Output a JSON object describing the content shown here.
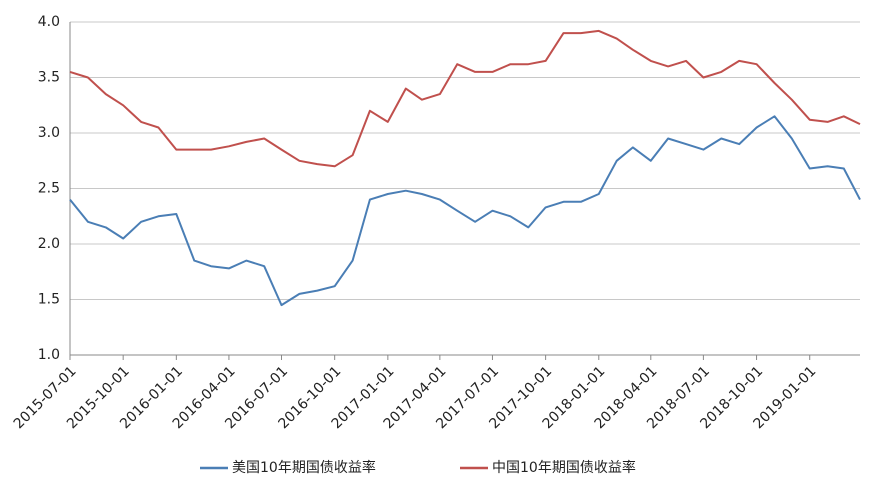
{
  "chart_data": {
    "type": "line",
    "x": [
      "2015-07-01",
      "2015-08-01",
      "2015-09-01",
      "2015-10-01",
      "2015-11-01",
      "2015-12-01",
      "2016-01-01",
      "2016-02-01",
      "2016-03-01",
      "2016-04-01",
      "2016-05-01",
      "2016-06-01",
      "2016-07-01",
      "2016-08-01",
      "2016-09-01",
      "2016-10-01",
      "2016-11-01",
      "2016-12-01",
      "2017-01-01",
      "2017-02-01",
      "2017-03-01",
      "2017-04-01",
      "2017-05-01",
      "2017-06-01",
      "2017-07-01",
      "2017-08-01",
      "2017-09-01",
      "2017-10-01",
      "2017-11-01",
      "2017-12-01",
      "2018-01-01",
      "2018-02-01",
      "2018-03-01",
      "2018-04-01",
      "2018-05-01",
      "2018-06-01",
      "2018-07-01",
      "2018-08-01",
      "2018-09-01",
      "2018-10-01",
      "2018-11-01",
      "2018-12-01",
      "2019-01-01",
      "2019-02-01",
      "2019-03-01",
      "2019-03-29"
    ],
    "series": [
      {
        "name": "美国10年期国债收益率",
        "color": "#4a7eb5",
        "values": [
          2.4,
          2.2,
          2.15,
          2.05,
          2.2,
          2.25,
          2.27,
          1.85,
          1.8,
          1.78,
          1.85,
          1.8,
          1.45,
          1.55,
          1.58,
          1.62,
          1.85,
          2.4,
          2.45,
          2.48,
          2.45,
          2.4,
          2.3,
          2.2,
          2.3,
          2.25,
          2.15,
          2.33,
          2.38,
          2.38,
          2.45,
          2.75,
          2.87,
          2.75,
          2.95,
          2.9,
          2.85,
          2.95,
          2.9,
          3.05,
          3.15,
          2.95,
          2.68,
          2.7,
          2.68,
          2.4
        ]
      },
      {
        "name": "中国10年期国债收益率",
        "color": "#c0504d",
        "values": [
          3.55,
          3.5,
          3.35,
          3.25,
          3.1,
          3.05,
          2.85,
          2.85,
          2.85,
          2.88,
          2.92,
          2.95,
          2.85,
          2.75,
          2.72,
          2.7,
          2.8,
          3.2,
          3.1,
          3.4,
          3.3,
          3.35,
          3.62,
          3.55,
          3.55,
          3.62,
          3.62,
          3.65,
          3.9,
          3.9,
          3.92,
          3.85,
          3.75,
          3.65,
          3.6,
          3.65,
          3.5,
          3.55,
          3.65,
          3.62,
          3.45,
          3.3,
          3.12,
          3.1,
          3.15,
          3.08
        ]
      }
    ],
    "xlim": [
      "2015-07-01",
      "2019-03-29"
    ],
    "xticks": [
      "2015-07-01",
      "2015-10-01",
      "2016-01-01",
      "2016-04-01",
      "2016-07-01",
      "2016-10-01",
      "2017-01-01",
      "2017-04-01",
      "2017-07-01",
      "2017-10-01",
      "2018-01-01",
      "2018-04-01",
      "2018-07-01",
      "2018-10-01",
      "2019-01-01"
    ],
    "ylim": [
      1,
      4
    ],
    "yticks": [
      {
        "value": 1,
        "label": "1.0"
      },
      1.5,
      {
        "value": 2,
        "label": "2.0"
      },
      2.5,
      {
        "value": 3,
        "label": "3.0"
      },
      3.5,
      {
        "value": 4,
        "label": "4.0"
      }
    ],
    "grid": true
  }
}
